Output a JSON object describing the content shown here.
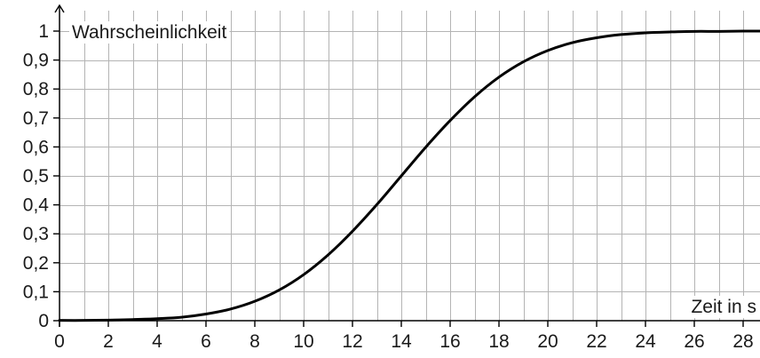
{
  "chart_data": {
    "type": "line",
    "title": "",
    "xlabel": "Zeit in s",
    "ylabel": "Wahrscheinlichkeit",
    "xlim": [
      0,
      28.7
    ],
    "ylim": [
      0,
      1.07
    ],
    "x_ticks": [
      0,
      2,
      4,
      6,
      8,
      10,
      12,
      14,
      16,
      18,
      20,
      22,
      24,
      26,
      28
    ],
    "x_tick_labels": [
      "0",
      "2",
      "4",
      "6",
      "8",
      "10",
      "12",
      "14",
      "16",
      "18",
      "20",
      "22",
      "24",
      "26",
      "28"
    ],
    "y_ticks": [
      0,
      0.1,
      0.2,
      0.3,
      0.4,
      0.5,
      0.6,
      0.7,
      0.8,
      0.9,
      1
    ],
    "y_tick_labels": [
      "0",
      "0,1",
      "0,2",
      "0,3",
      "0,4",
      "0,5",
      "0,6",
      "0,7",
      "0,8",
      "0,9",
      "1"
    ],
    "grid": {
      "x_step": 1,
      "y_step": 0.1,
      "on": true
    },
    "series": [
      {
        "x": [
          0,
          1,
          2,
          3,
          4,
          5,
          6,
          7,
          8,
          9,
          10,
          11,
          12,
          13,
          14,
          15,
          16,
          17,
          18,
          19,
          20,
          21,
          22,
          23,
          24,
          25,
          26,
          27,
          28,
          28.7
        ],
        "y": [
          0.001,
          0.001,
          0.002,
          0.004,
          0.007,
          0.012,
          0.023,
          0.04,
          0.067,
          0.106,
          0.159,
          0.227,
          0.309,
          0.401,
          0.5,
          0.599,
          0.691,
          0.773,
          0.841,
          0.894,
          0.933,
          0.96,
          0.977,
          0.988,
          0.994,
          0.997,
          0.999,
          0.999,
          1.0,
          1.0
        ],
        "color": "#000000"
      }
    ]
  }
}
